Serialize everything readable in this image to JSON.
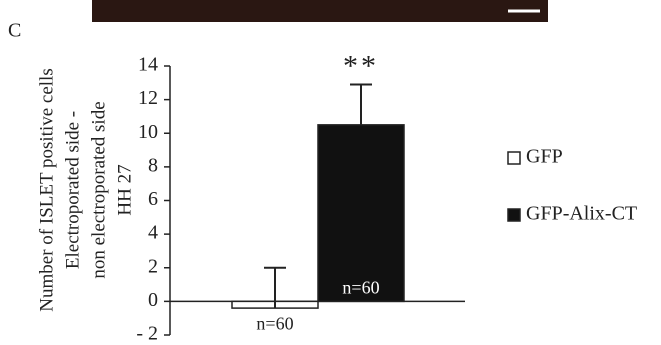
{
  "panel_label": "C",
  "chart_data": {
    "type": "bar",
    "y_label": [
      "Number of ISLET positive  cells",
      "Electroporated side -",
      "non electroporated side",
      "HH 27"
    ],
    "categories": [
      null
    ],
    "series": [
      {
        "name": "GFP",
        "color": "#ffffff",
        "values": [
          -0.4
        ],
        "errors": [
          2.4
        ],
        "n_label": "n=60"
      },
      {
        "name": "GFP-Alix-CT",
        "color": "#111111",
        "values": [
          10.5
        ],
        "errors": [
          2.4
        ],
        "n_label": "n=60",
        "significance": "**"
      }
    ],
    "ylim": [
      -2,
      14
    ],
    "yticks": [
      {
        "value": -2,
        "label": "- 2"
      },
      0,
      2,
      4,
      6,
      8,
      10,
      12,
      14
    ],
    "legend": "right"
  }
}
